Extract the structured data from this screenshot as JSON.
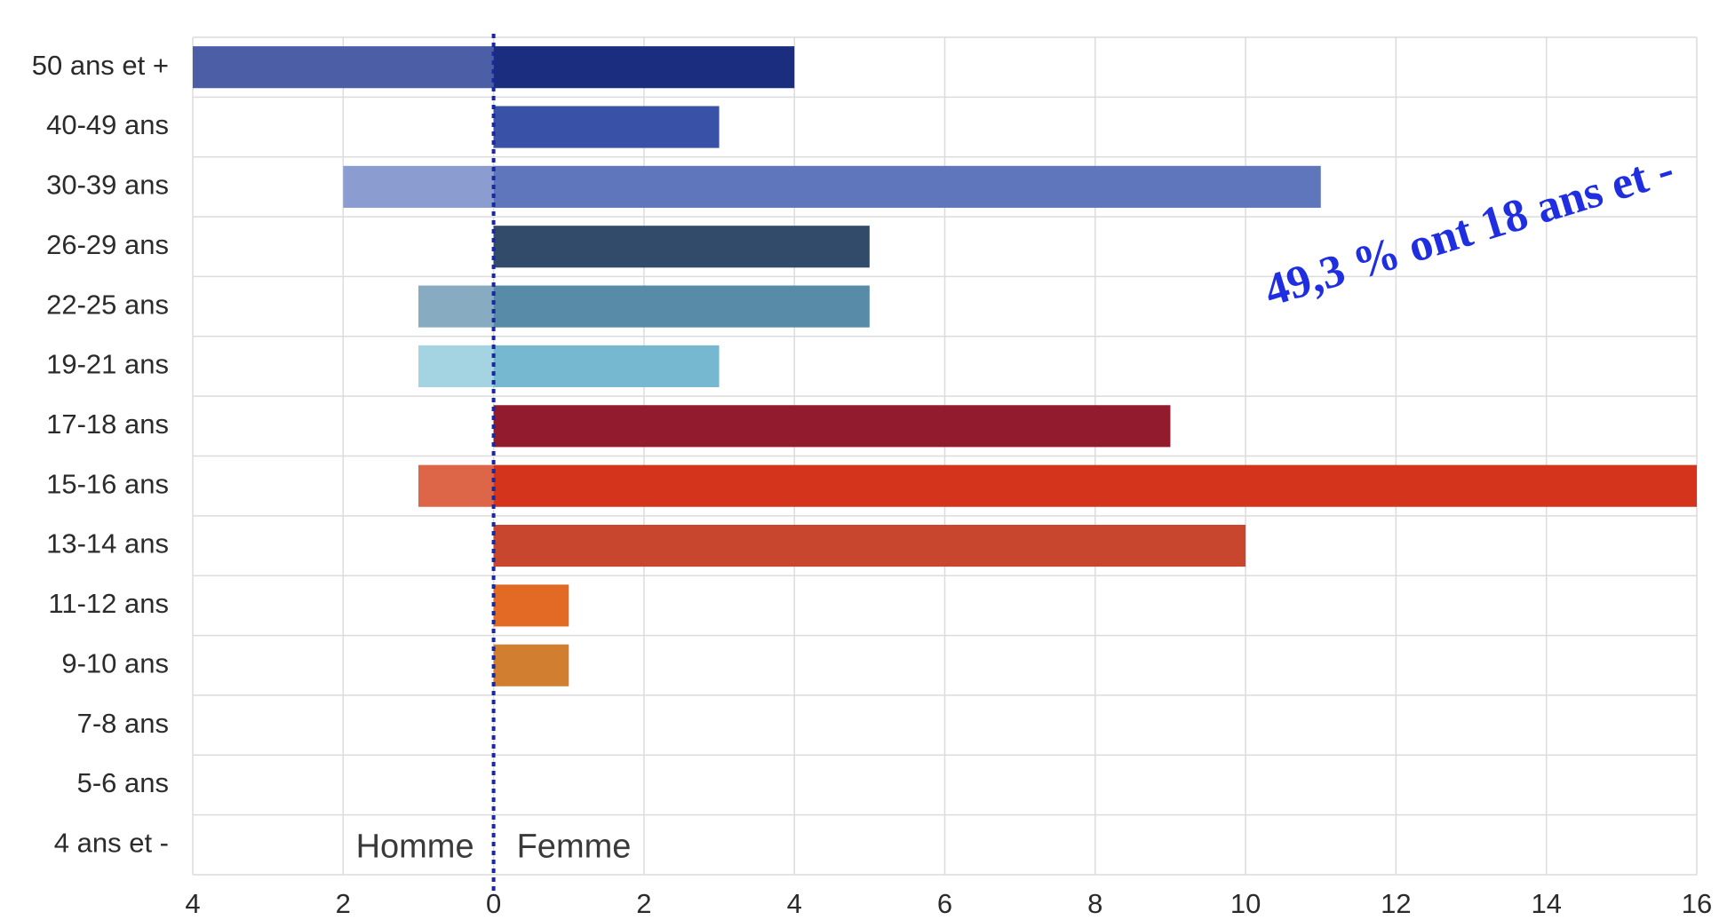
{
  "chart_data": {
    "type": "bar",
    "orientation": "horizontal",
    "categories": [
      "50 ans et +",
      "40-49 ans",
      "30-39 ans",
      "26-29 ans",
      "22-25 ans",
      "19-21 ans",
      "17-18 ans",
      "15-16 ans",
      "13-14 ans",
      "11-12 ans",
      "9-10 ans",
      "7-8 ans",
      "5-6 ans",
      "4 ans et -"
    ],
    "series": [
      {
        "name": "Homme",
        "values": [
          4,
          0,
          2,
          0,
          1,
          1,
          0,
          1,
          0,
          0,
          0,
          0,
          0,
          0
        ]
      },
      {
        "name": "Femme",
        "values": [
          4,
          3,
          11,
          5,
          5,
          3,
          9,
          16,
          10,
          1,
          1,
          0,
          0,
          0
        ]
      }
    ],
    "xlim": [
      -4,
      16
    ],
    "x_ticks": [
      -4,
      -2,
      0,
      2,
      4,
      6,
      8,
      10,
      12,
      14,
      16
    ],
    "x_tick_labels": [
      "4",
      "2",
      "0",
      "2",
      "4",
      "6",
      "8",
      "10",
      "12",
      "14",
      "16"
    ],
    "grid": true,
    "side_labels": {
      "left": "Homme",
      "right": "Femme"
    },
    "annotation": "49,3 % ont 18 ans et -",
    "colors": {
      "femme": [
        "#1b2d7e",
        "#3a51a8",
        "#5f76bd",
        "#334b6b",
        "#588ba8",
        "#76b8d0",
        "#921c2e",
        "#d4331c",
        "#c9462e",
        "#e36a24",
        "#d17e30",
        "#cccccc",
        "#cccccc",
        "#cccccc"
      ],
      "homme": [
        "#4c5ea6",
        "#6678be",
        "#8a9cd0",
        "#5a6f8f",
        "#87abc0",
        "#a4d3e2",
        "#b04c5a",
        "#dd6548",
        "#d57058",
        "#eb8c54",
        "#da9a5c",
        "#dddddd",
        "#dddddd",
        "#dddddd"
      ],
      "zero_line": "#1a2a9a",
      "annotation": "#1f2ee0"
    }
  }
}
